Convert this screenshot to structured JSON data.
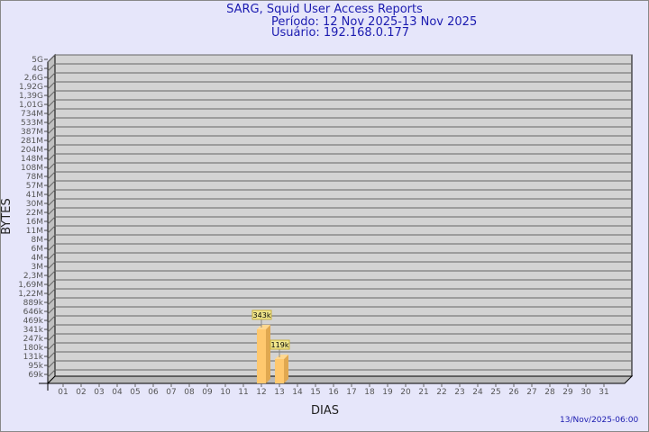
{
  "title": "SARG, Squid User Access Reports",
  "period": "Período: 12 Nov 2025-13 Nov 2025",
  "user": "Usuário: 192.168.0.177",
  "timestamp": "13/Nov/2025-06:00",
  "chart_data": {
    "type": "bar",
    "xlabel": "DIAS",
    "ylabel": "BYTES",
    "yscale": "log",
    "y_tick_labels": [
      "5G",
      "4G",
      "2,6G",
      "1,92G",
      "1,39G",
      "1,01G",
      "734M",
      "533M",
      "387M",
      "281M",
      "204M",
      "148M",
      "108M",
      "78M",
      "57M",
      "41M",
      "30M",
      "22M",
      "16M",
      "11M",
      "8M",
      "6M",
      "4M",
      "3M",
      "2,3M",
      "1,69M",
      "1,22M",
      "889k",
      "646k",
      "469k",
      "341k",
      "247k",
      "180k",
      "131k",
      "95k",
      "69k"
    ],
    "y_tick_values": [
      5000000000.0,
      4000000000.0,
      2600000000.0,
      1920000000.0,
      1390000000.0,
      1010000000.0,
      734000000.0,
      533000000.0,
      387000000.0,
      281000000.0,
      204000000.0,
      148000000.0,
      108000000.0,
      78000000.0,
      57000000.0,
      41000000.0,
      30000000.0,
      22000000.0,
      16000000.0,
      11000000.0,
      8000000.0,
      6000000.0,
      4000000.0,
      3000000.0,
      2300000.0,
      1690000.0,
      1220000.0,
      889000.0,
      646000.0,
      469000.0,
      341000.0,
      247000.0,
      180000.0,
      131000.0,
      95000.0,
      69000.0
    ],
    "categories": [
      "01",
      "02",
      "03",
      "04",
      "05",
      "06",
      "07",
      "08",
      "09",
      "10",
      "11",
      "12",
      "13",
      "14",
      "15",
      "16",
      "17",
      "18",
      "19",
      "20",
      "21",
      "22",
      "23",
      "24",
      "25",
      "26",
      "27",
      "28",
      "29",
      "30",
      "31"
    ],
    "values": [
      null,
      null,
      null,
      null,
      null,
      null,
      null,
      null,
      null,
      null,
      null,
      343000,
      119000,
      null,
      null,
      null,
      null,
      null,
      null,
      null,
      null,
      null,
      null,
      null,
      null,
      null,
      null,
      null,
      null,
      null,
      null
    ],
    "data_labels": {
      "12": "343k",
      "13": "119k"
    },
    "bar_color": "#ffc86e",
    "wall_color": "#d3d3d3",
    "grid": true
  }
}
